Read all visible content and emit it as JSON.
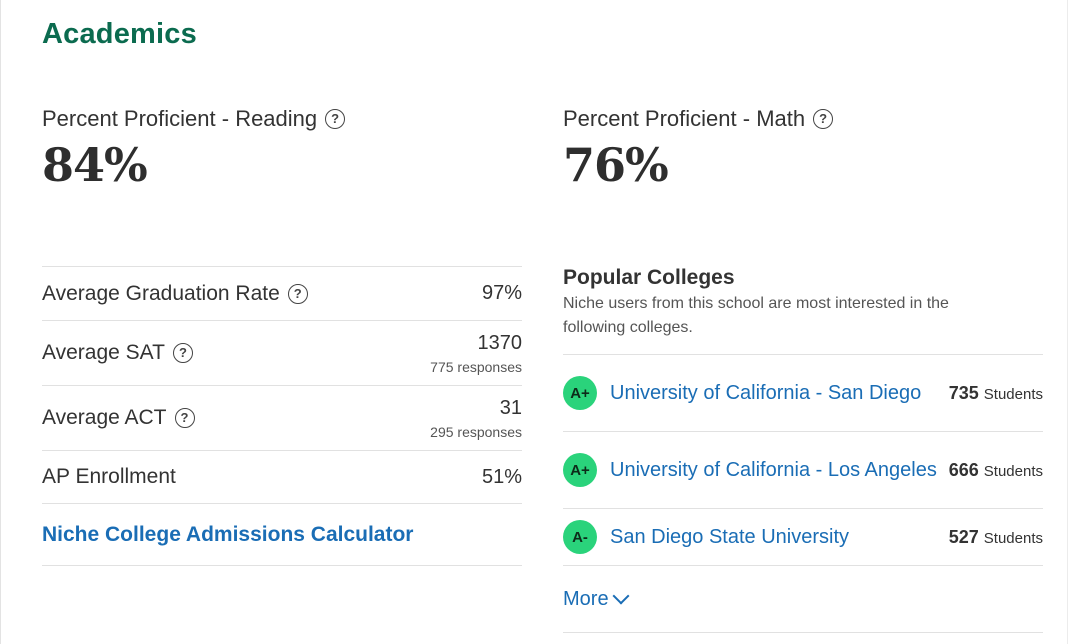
{
  "section": {
    "title": "Academics"
  },
  "proficiency": {
    "reading": {
      "label": "Percent Proficient - Reading",
      "value": "84%"
    },
    "math": {
      "label": "Percent Proficient - Math",
      "value": "76%"
    }
  },
  "stats": {
    "graduation": {
      "label": "Average Graduation Rate",
      "value": "97%"
    },
    "sat": {
      "label": "Average SAT",
      "value": "1370",
      "responses": "775 responses"
    },
    "act": {
      "label": "Average ACT",
      "value": "31",
      "responses": "295 responses"
    },
    "ap": {
      "label": "AP Enrollment",
      "value": "51%"
    },
    "calculator_link": "Niche College Admissions Calculator"
  },
  "colleges": {
    "title": "Popular Colleges",
    "description": "Niche users from this school are most interested in the following colleges.",
    "items": [
      {
        "grade": "A+",
        "name": "University of California - San Diego",
        "count": "735",
        "unit": "Students"
      },
      {
        "grade": "A+",
        "name": "University of California - Los Angeles",
        "count": "666",
        "unit": "Students"
      },
      {
        "grade": "A-",
        "name": "San Diego State University",
        "count": "527",
        "unit": "Students"
      }
    ],
    "more_label": "More"
  },
  "icons": {
    "help": "question-circle-icon",
    "more": "chevron-down-icon"
  },
  "colors": {
    "title": "#0b6b4f",
    "link": "#1a6db5",
    "grade_badge": "#2ad37b"
  }
}
